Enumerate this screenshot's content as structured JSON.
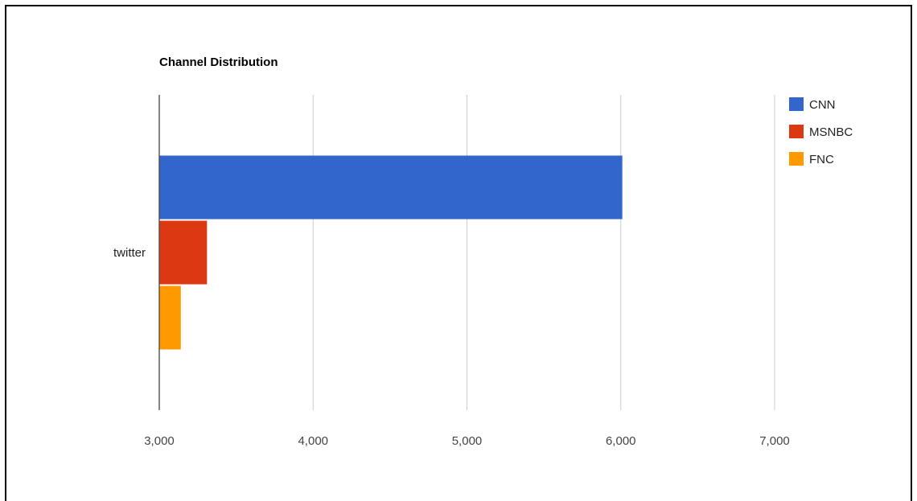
{
  "chart_data": {
    "type": "bar",
    "orientation": "horizontal",
    "title": "Channel Distribution",
    "categories": [
      "twitter"
    ],
    "series": [
      {
        "name": "CNN",
        "values": [
          6010
        ],
        "color": "#3366cc"
      },
      {
        "name": "MSNBC",
        "values": [
          3310
        ],
        "color": "#dc3912"
      },
      {
        "name": "FNC",
        "values": [
          3140
        ],
        "color": "#ff9900"
      }
    ],
    "xlim": [
      3000,
      7000
    ],
    "xticks": [
      "3,000",
      "4,000",
      "5,000",
      "6,000",
      "7,000"
    ],
    "xlabel": "",
    "ylabel": "",
    "grid": true,
    "legend_position": "right"
  }
}
